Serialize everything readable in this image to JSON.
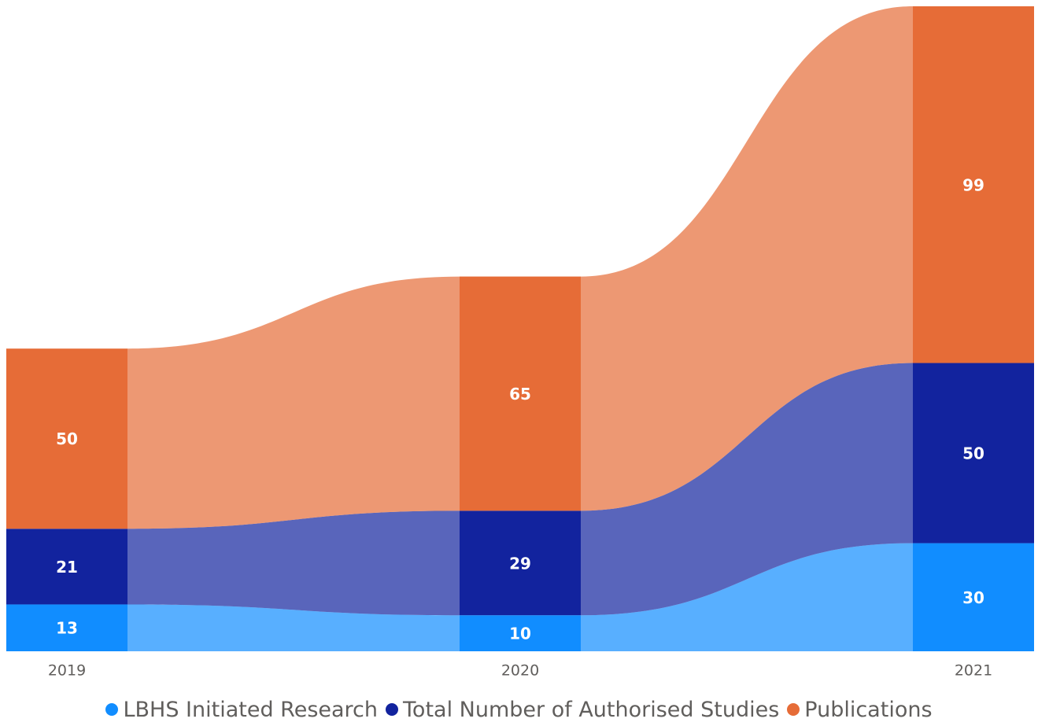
{
  "chart_data": {
    "type": "ribbon",
    "categories": [
      "2019",
      "2020",
      "2021"
    ],
    "series": [
      {
        "name": "LBHS Initiated Research",
        "color": "#118dff",
        "values": [
          13,
          10,
          30
        ]
      },
      {
        "name": "Total Number of Authorised Studies",
        "color": "#12239e",
        "values": [
          21,
          29,
          50
        ]
      },
      {
        "name": "Publications",
        "color": "#e66c37",
        "values": [
          50,
          65,
          99
        ]
      }
    ],
    "legend": "bottom"
  }
}
